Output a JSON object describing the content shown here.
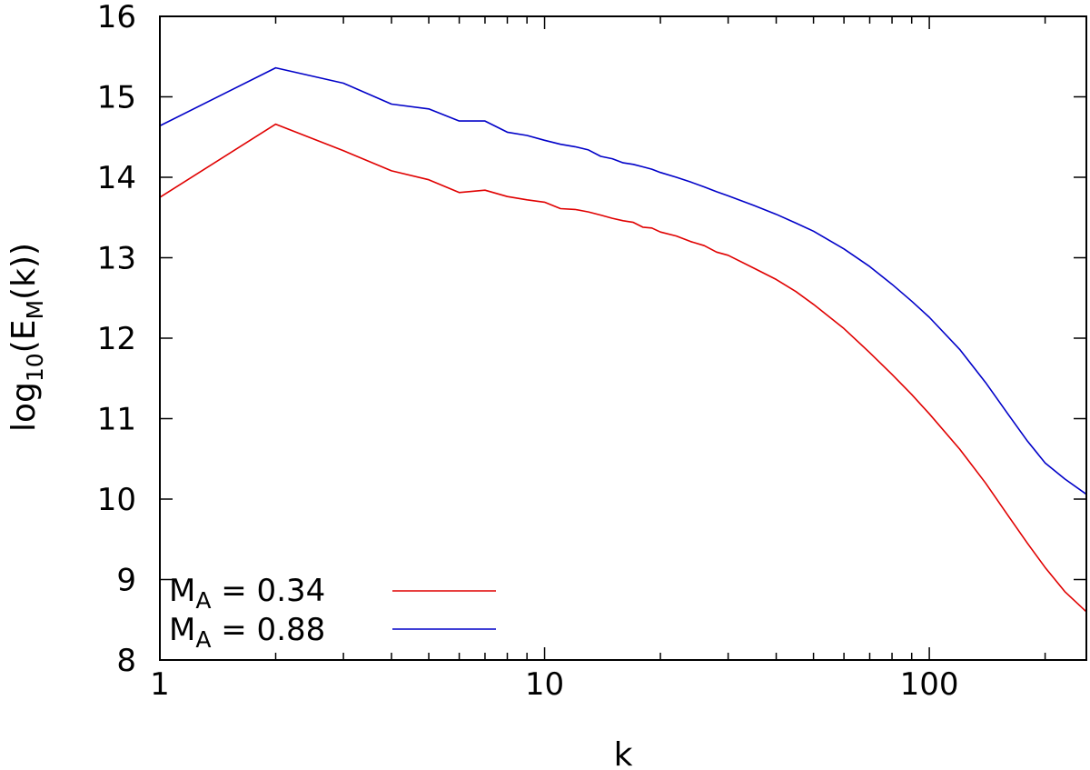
{
  "chart_data": {
    "type": "line",
    "title": "",
    "xlabel": "k",
    "ylabel": {
      "base": "log",
      "sub1": "10",
      "mid": "(E",
      "sub2": "M",
      "end": "(k))"
    },
    "x_scale": "log",
    "xlim": [
      1,
      256
    ],
    "ylim": [
      8,
      16
    ],
    "x_ticks": [
      {
        "value": 1,
        "label": "1"
      },
      {
        "value": 10,
        "label": "10"
      },
      {
        "value": 100,
        "label": "100"
      }
    ],
    "y_ticks": [
      {
        "value": 8,
        "label": "8"
      },
      {
        "value": 9,
        "label": "9"
      },
      {
        "value": 10,
        "label": "10"
      },
      {
        "value": 11,
        "label": "11"
      },
      {
        "value": 12,
        "label": "12"
      },
      {
        "value": 13,
        "label": "13"
      },
      {
        "value": 14,
        "label": "14"
      },
      {
        "value": 15,
        "label": "15"
      },
      {
        "value": 16,
        "label": "16"
      }
    ],
    "grid": false,
    "legend_position": "bottom-left",
    "series": [
      {
        "name": {
          "main": "M",
          "sub": "A",
          "rest": " = 0.34"
        },
        "color": "#e00000",
        "x": [
          1,
          2,
          3,
          4,
          5,
          6,
          7,
          8,
          9,
          10,
          11,
          12,
          13,
          14,
          15,
          16,
          17,
          18,
          19,
          20,
          22,
          24,
          26,
          28,
          30,
          35,
          40,
          45,
          50,
          60,
          70,
          80,
          90,
          100,
          120,
          140,
          160,
          180,
          200,
          225,
          256
        ],
        "y": [
          13.75,
          14.66,
          14.33,
          14.08,
          13.97,
          13.81,
          13.84,
          13.76,
          13.72,
          13.69,
          13.61,
          13.6,
          13.57,
          13.53,
          13.49,
          13.46,
          13.44,
          13.38,
          13.37,
          13.32,
          13.27,
          13.2,
          13.15,
          13.07,
          13.03,
          12.87,
          12.73,
          12.58,
          12.42,
          12.12,
          11.82,
          11.55,
          11.3,
          11.06,
          10.62,
          10.2,
          9.8,
          9.45,
          9.15,
          8.85,
          8.6
        ]
      },
      {
        "name": {
          "main": "M",
          "sub": "A",
          "rest": " = 0.88"
        },
        "color": "#0000c8",
        "x": [
          1,
          2,
          3,
          4,
          5,
          6,
          7,
          8,
          9,
          10,
          11,
          12,
          13,
          14,
          15,
          16,
          17,
          18,
          19,
          20,
          22,
          24,
          26,
          28,
          30,
          35,
          40,
          45,
          50,
          60,
          70,
          80,
          90,
          100,
          120,
          140,
          160,
          180,
          200,
          225,
          256
        ],
        "y": [
          14.64,
          15.36,
          15.17,
          14.91,
          14.85,
          14.7,
          14.7,
          14.56,
          14.52,
          14.46,
          14.41,
          14.38,
          14.34,
          14.26,
          14.23,
          14.18,
          14.16,
          14.13,
          14.1,
          14.06,
          14.0,
          13.94,
          13.88,
          13.82,
          13.77,
          13.65,
          13.54,
          13.43,
          13.33,
          13.11,
          12.89,
          12.67,
          12.46,
          12.26,
          11.86,
          11.45,
          11.06,
          10.72,
          10.45,
          10.25,
          10.06
        ]
      }
    ]
  }
}
